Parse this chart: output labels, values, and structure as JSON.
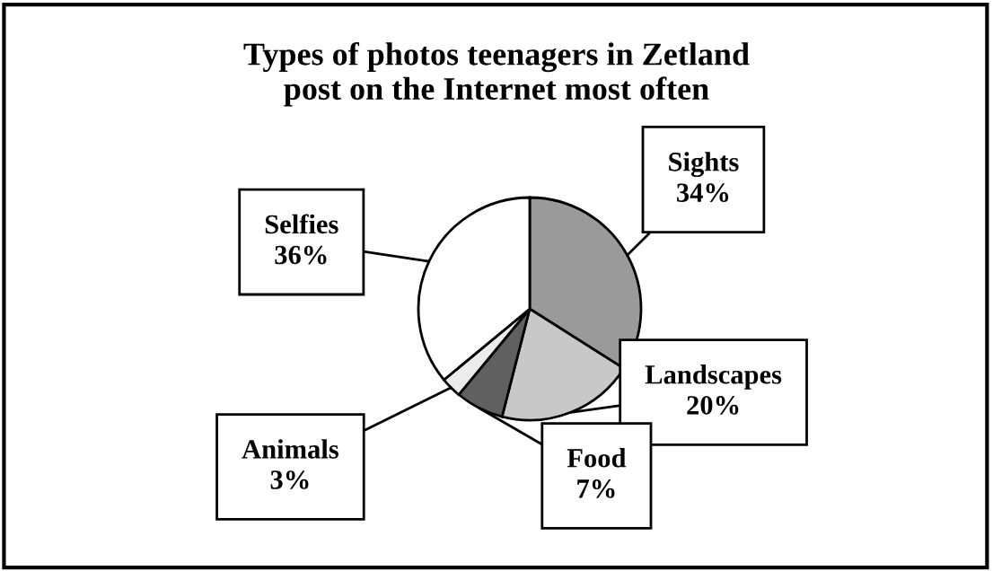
{
  "chart_data": {
    "type": "pie",
    "title": "Types of photos teenagers in Zetland\npost on the Internet most often",
    "categories": [
      "Sights",
      "Landscapes",
      "Food",
      "Animals",
      "Selfies"
    ],
    "values": [
      34,
      20,
      7,
      3,
      36
    ],
    "value_labels": [
      "34%",
      "20%",
      "7%",
      "3%",
      "36%"
    ],
    "colors": [
      "#9a9a9a",
      "#c8c8c8",
      "#606060",
      "#ececec",
      "#ffffff"
    ],
    "legend": false
  }
}
